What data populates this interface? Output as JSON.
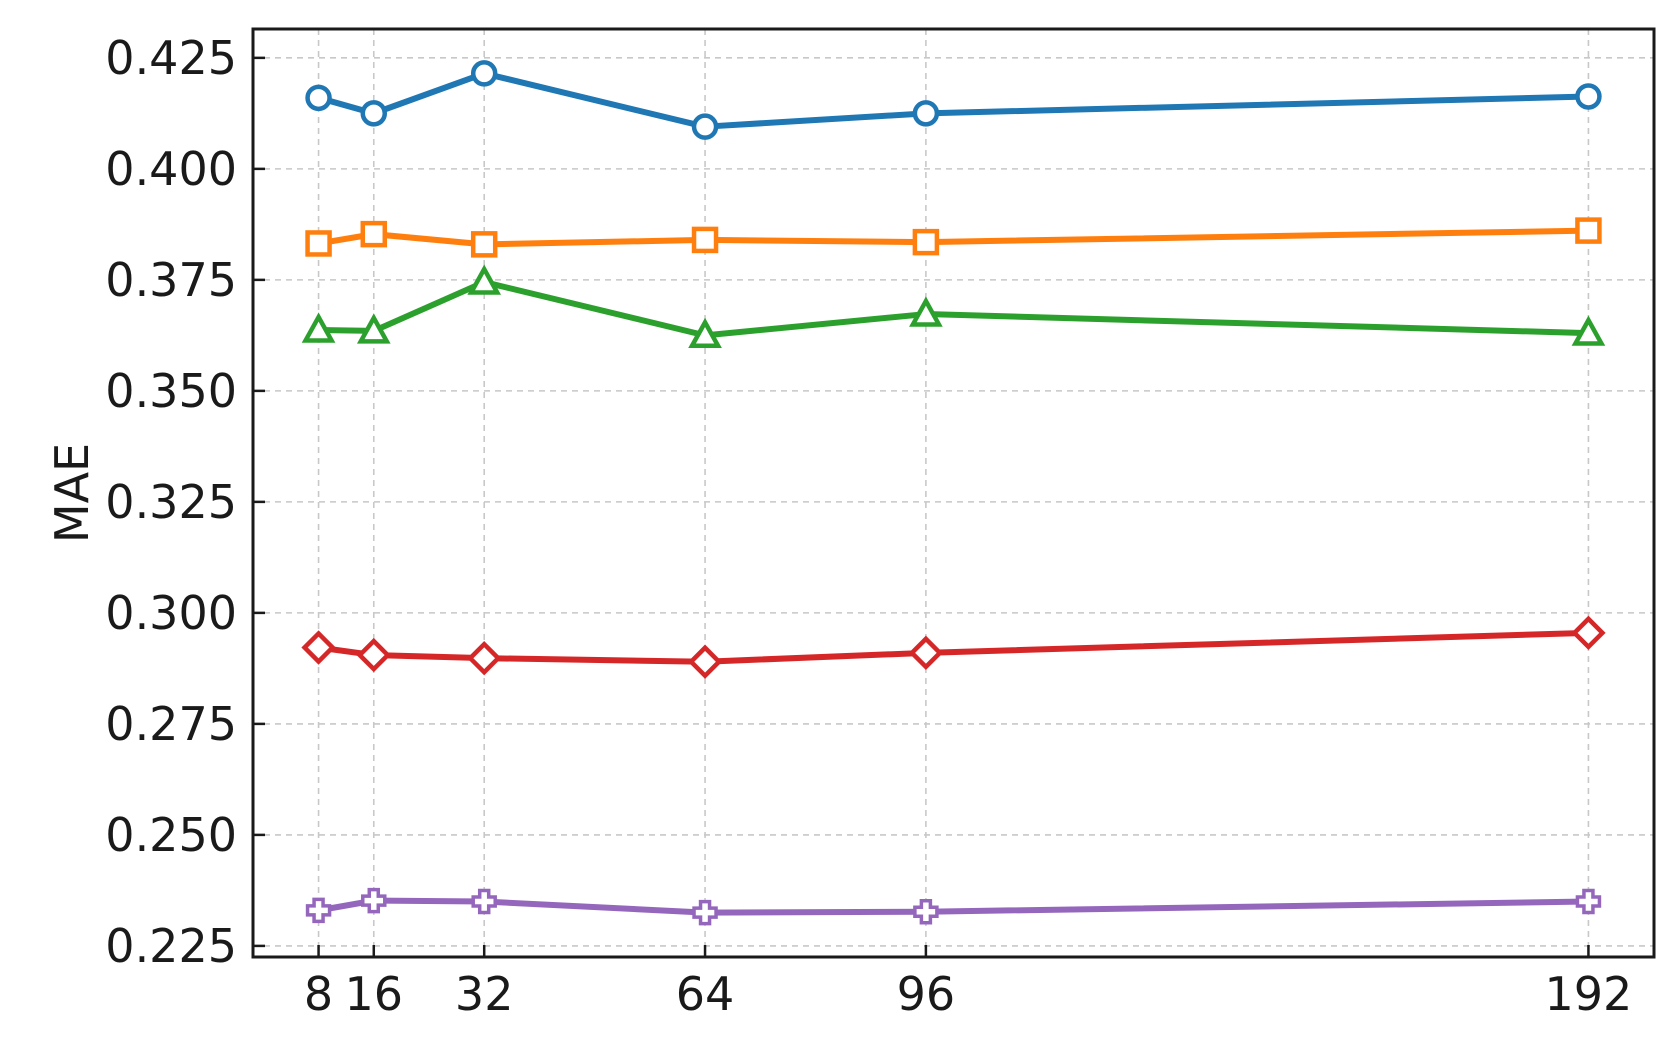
{
  "chart_data": {
    "type": "line",
    "title": "",
    "xlabel": "",
    "ylabel": "MAE",
    "x": [
      8,
      16,
      32,
      64,
      96,
      192
    ],
    "xticks": [
      "8",
      "16",
      "32",
      "64",
      "96",
      "192"
    ],
    "xlim": [
      -1.5,
      201.5
    ],
    "ylim": [
      0.2225,
      0.4315
    ],
    "yticks": [
      "0.225",
      "0.250",
      "0.275",
      "0.300",
      "0.325",
      "0.350",
      "0.375",
      "0.400",
      "0.425"
    ],
    "grid": true,
    "legend": "none",
    "series": [
      {
        "marker": "circle",
        "color": "#1f77b4",
        "values": [
          0.416,
          0.4125,
          0.4215,
          0.4095,
          0.4125,
          0.4163
        ]
      },
      {
        "marker": "square",
        "color": "#ff7f0e",
        "values": [
          0.3832,
          0.3853,
          0.383,
          0.384,
          0.3835,
          0.3861
        ]
      },
      {
        "marker": "triangle",
        "color": "#2ca02c",
        "values": [
          0.3637,
          0.3635,
          0.3745,
          0.3625,
          0.3673,
          0.363
        ]
      },
      {
        "marker": "diamond",
        "color": "#d62728",
        "values": [
          0.2922,
          0.2905,
          0.2898,
          0.289,
          0.291,
          0.2955
        ]
      },
      {
        "marker": "plus",
        "color": "#9467bd",
        "values": [
          0.233,
          0.2352,
          0.235,
          0.2325,
          0.2327,
          0.235
        ]
      }
    ]
  }
}
